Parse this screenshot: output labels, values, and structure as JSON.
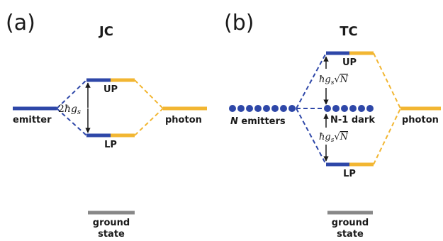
{
  "panel_a": {
    "tag": "(a)",
    "title": "JC",
    "emitter_label": "emitter",
    "photon_label": "photon",
    "up_label": "UP",
    "lp_label": "LP",
    "splitting": {
      "coef": "2",
      "hbar": "ħ",
      "g": "g",
      "sub": "s"
    },
    "ground_line1": "ground",
    "ground_line2": "state"
  },
  "panel_b": {
    "tag": "(b)",
    "title": "TC",
    "emitters_N": "N",
    "emitters_label": " emitters",
    "dark_label": "N-1 dark",
    "photon_label": "photon",
    "up_label": "UP",
    "lp_label": "LP",
    "splitting": {
      "hbar": "ħ",
      "g": "g",
      "sub": "s",
      "root": "√",
      "N": "N"
    },
    "ground_line1": "ground",
    "ground_line2": "state"
  },
  "colors": {
    "emitter_blue": "#2e47a8",
    "photon_orange": "#f2b632",
    "ground_gray": "#888888",
    "text": "#1a1a1a"
  }
}
